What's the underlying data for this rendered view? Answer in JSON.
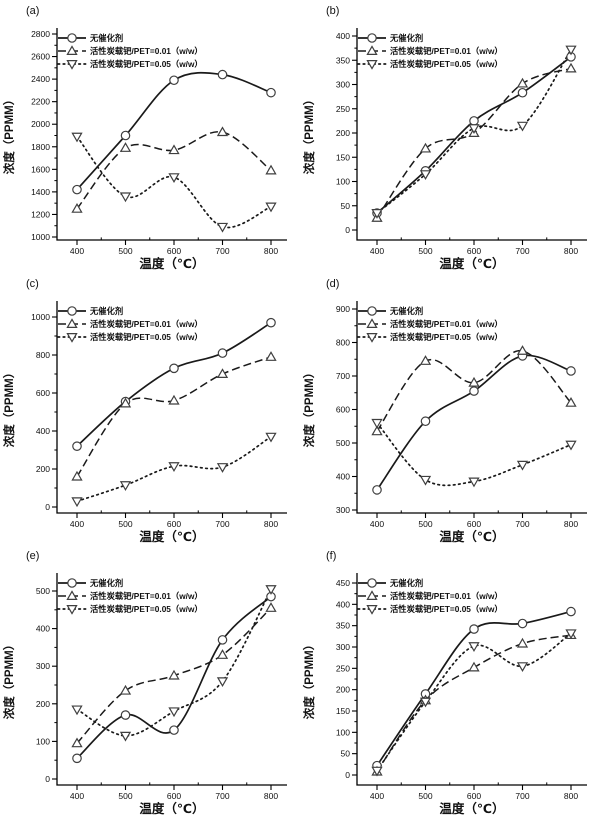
{
  "figure": {
    "background": "#ffffff",
    "line_color": "#1a1a1a",
    "axis_color": "#000000",
    "marker_stroke": "#3f3f3f",
    "marker_fill": "#ffffff",
    "legend_entries": [
      "无催化剂",
      "活性炭载钯/PET=0.01（w/w）",
      "活性炭载钯/PET=0.05（w/w）"
    ],
    "xlabel": "温度（℃）",
    "ylabel": "浓度（PPMM）"
  },
  "chart_data": [
    {
      "type": "line",
      "panel_label": "(a)",
      "xlabel": "温度（℃）",
      "ylabel": "浓度（PPMM）",
      "x": [
        400,
        500,
        600,
        700,
        800
      ],
      "xlim": [
        400,
        800
      ],
      "ylim": [
        1000,
        2800
      ],
      "ytick_step": 200,
      "grid": false,
      "legend_position": "top-left",
      "series": [
        {
          "name": "无催化剂",
          "line": "solid",
          "marker": "circle",
          "values": [
            1420,
            1900,
            2390,
            2440,
            2280
          ]
        },
        {
          "name": "活性炭载钯/PET=0.01（w/w）",
          "line": "dashed",
          "marker": "triangle-up",
          "values": [
            1250,
            1790,
            1770,
            1930,
            1590
          ]
        },
        {
          "name": "活性炭载钯/PET=0.05（w/w）",
          "line": "dotted",
          "marker": "triangle-down",
          "values": [
            1890,
            1360,
            1530,
            1090,
            1270
          ]
        }
      ]
    },
    {
      "type": "line",
      "panel_label": "(b)",
      "xlabel": "温度（℃）",
      "ylabel": "浓度（PPMM）",
      "x": [
        400,
        500,
        600,
        700,
        800
      ],
      "xlim": [
        400,
        800
      ],
      "ylim": [
        0,
        400
      ],
      "ytick_step": 50,
      "grid": false,
      "legend_position": "top-left",
      "series": [
        {
          "name": "无催化剂",
          "line": "solid",
          "marker": "circle",
          "values": [
            35,
            122,
            225,
            283,
            357
          ]
        },
        {
          "name": "活性炭载钯/PET=0.01（w/w）",
          "line": "dashed",
          "marker": "triangle-up",
          "values": [
            25,
            168,
            200,
            302,
            333
          ]
        },
        {
          "name": "活性炭载钯/PET=0.05（w/w）",
          "line": "dotted",
          "marker": "triangle-down",
          "values": [
            35,
            115,
            210,
            215,
            372
          ]
        }
      ]
    },
    {
      "type": "line",
      "panel_label": "(c)",
      "xlabel": "温度（℃）",
      "ylabel": "浓度（PPMM）",
      "x": [
        400,
        500,
        600,
        700,
        800
      ],
      "xlim": [
        400,
        800
      ],
      "ylim": [
        0,
        1000
      ],
      "ytick_step": 200,
      "grid": false,
      "legend_position": "top-left",
      "series": [
        {
          "name": "无催化剂",
          "line": "solid",
          "marker": "circle",
          "values": [
            320,
            555,
            730,
            810,
            970
          ]
        },
        {
          "name": "活性炭载钯/PET=0.01（w/w）",
          "line": "dashed",
          "marker": "triangle-up",
          "values": [
            160,
            545,
            560,
            700,
            790
          ]
        },
        {
          "name": "活性炭载钯/PET=0.05（w/w）",
          "line": "dotted",
          "marker": "triangle-down",
          "values": [
            30,
            115,
            215,
            210,
            370
          ]
        }
      ]
    },
    {
      "type": "line",
      "panel_label": "(d)",
      "xlabel": "温度（℃）",
      "ylabel": "浓度（PPMM）",
      "x": [
        400,
        500,
        600,
        700,
        800
      ],
      "xlim": [
        400,
        800
      ],
      "ylim": [
        300,
        900
      ],
      "ytick_step": 100,
      "grid": false,
      "legend_position": "top-left",
      "series": [
        {
          "name": "无催化剂",
          "line": "solid",
          "marker": "circle",
          "values": [
            360,
            565,
            655,
            760,
            715
          ]
        },
        {
          "name": "活性炭载钯/PET=0.01（w/w）",
          "line": "dashed",
          "marker": "triangle-up",
          "values": [
            535,
            745,
            680,
            775,
            620
          ]
        },
        {
          "name": "活性炭载钯/PET=0.05（w/w）",
          "line": "dotted",
          "marker": "triangle-down",
          "values": [
            560,
            390,
            385,
            435,
            495
          ]
        }
      ]
    },
    {
      "type": "line",
      "panel_label": "(e)",
      "xlabel": "温度（℃）",
      "ylabel": "浓度（PPMM）",
      "x": [
        400,
        500,
        600,
        700,
        800
      ],
      "xlim": [
        400,
        800
      ],
      "ylim": [
        0,
        500
      ],
      "ytick_step": 100,
      "grid": false,
      "legend_position": "top-left",
      "series": [
        {
          "name": "无催化剂",
          "line": "solid",
          "marker": "circle",
          "values": [
            55,
            170,
            130,
            370,
            485
          ]
        },
        {
          "name": "活性炭载钯/PET=0.01（w/w）",
          "line": "dashed",
          "marker": "triangle-up",
          "values": [
            95,
            235,
            275,
            330,
            455
          ]
        },
        {
          "name": "活性炭载钯/PET=0.05（w/w）",
          "line": "dotted",
          "marker": "triangle-down",
          "values": [
            185,
            115,
            180,
            260,
            505
          ]
        }
      ]
    },
    {
      "type": "line",
      "panel_label": "(f)",
      "xlabel": "温度（℃）",
      "ylabel": "浓度（PPMM）",
      "x": [
        400,
        500,
        600,
        700,
        800
      ],
      "xlim": [
        400,
        800
      ],
      "ylim": [
        0,
        450
      ],
      "ytick_step": 50,
      "grid": false,
      "legend_position": "top-left",
      "series": [
        {
          "name": "无催化剂",
          "line": "solid",
          "marker": "circle",
          "values": [
            22,
            190,
            342,
            355,
            383
          ]
        },
        {
          "name": "活性炭载钯/PET=0.01（w/w）",
          "line": "dashed",
          "marker": "triangle-up",
          "values": [
            8,
            175,
            252,
            308,
            328
          ]
        },
        {
          "name": "活性炭载钯/PET=0.05（w/w）",
          "line": "dotted",
          "marker": "triangle-down",
          "values": [
            10,
            172,
            302,
            255,
            332
          ]
        }
      ]
    }
  ]
}
